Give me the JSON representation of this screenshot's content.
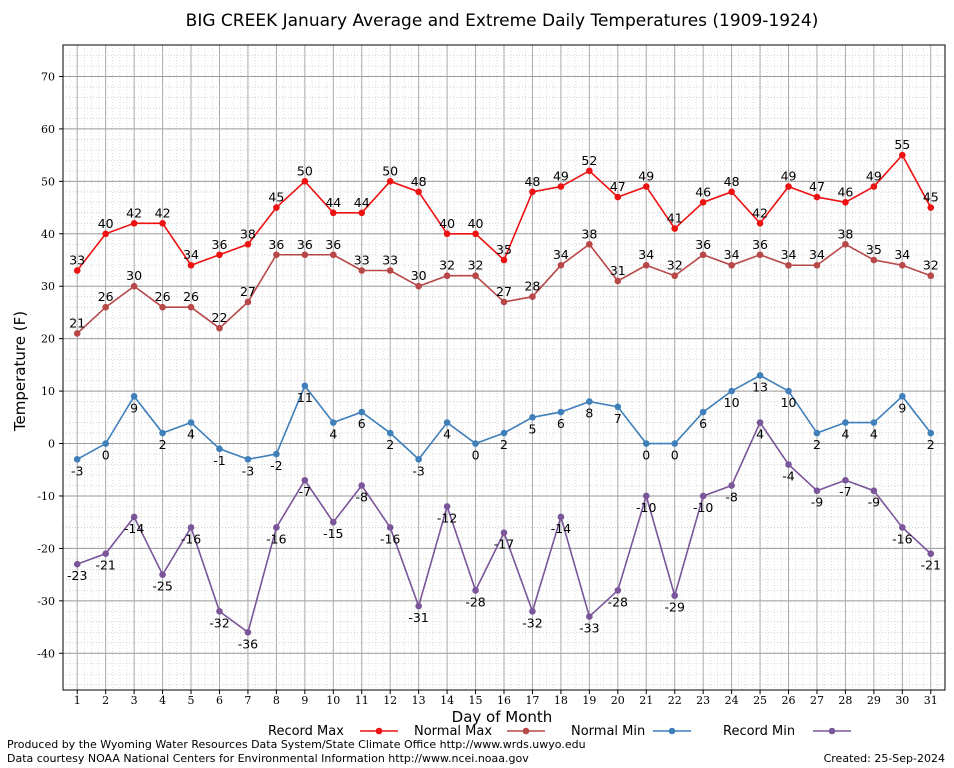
{
  "chart_data": {
    "type": "line",
    "title": "BIG CREEK January Average and Extreme Daily Temperatures (1909-1924)",
    "xlabel": "Day of Month",
    "ylabel": "Temperature (F)",
    "xlim": [
      0.5,
      31.5
    ],
    "ylim": [
      -47,
      76
    ],
    "yticks": [
      -40,
      -30,
      -20,
      -10,
      0,
      10,
      20,
      30,
      40,
      50,
      60,
      70
    ],
    "categories": [
      "1",
      "2",
      "3",
      "4",
      "5",
      "6",
      "7",
      "8",
      "9",
      "10",
      "11",
      "12",
      "13",
      "14",
      "15",
      "16",
      "17",
      "18",
      "19",
      "20",
      "21",
      "22",
      "23",
      "24",
      "25",
      "26",
      "27",
      "28",
      "29",
      "30",
      "31"
    ],
    "grid": true,
    "legend_position": "bottom",
    "series": [
      {
        "name": "Record Max",
        "color": "#ee1111",
        "values": [
          33,
          40,
          42,
          42,
          34,
          36,
          38,
          45,
          50,
          44,
          44,
          50,
          48,
          40,
          40,
          35,
          48,
          49,
          52,
          47,
          49,
          41,
          46,
          48,
          42,
          49,
          47,
          46,
          49,
          55,
          45
        ],
        "label_position": "above"
      },
      {
        "name": "Normal Max",
        "color": "#b84848",
        "values": [
          21,
          26,
          30,
          26,
          26,
          22,
          27,
          36,
          36,
          36,
          33,
          33,
          30,
          32,
          32,
          27,
          28,
          34,
          38,
          31,
          34,
          32,
          36,
          34,
          36,
          34,
          34,
          38,
          35,
          34,
          32
        ],
        "label_position": "above"
      },
      {
        "name": "Normal Min",
        "color": "#3f7fba",
        "values": [
          -3,
          0,
          9,
          2,
          4,
          -1,
          -3,
          -2,
          11,
          4,
          6,
          2,
          -3,
          4,
          0,
          2,
          5,
          6,
          8,
          7,
          0,
          0,
          6,
          10,
          13,
          10,
          2,
          4,
          4,
          9,
          2
        ],
        "label_position": "below"
      },
      {
        "name": "Record Min",
        "color": "#7a559a",
        "values": [
          -23,
          -21,
          -14,
          -25,
          -16,
          -32,
          -36,
          -16,
          -7,
          -15,
          -8,
          -16,
          -31,
          -12,
          -28,
          -17,
          -32,
          -14,
          -33,
          -28,
          -10,
          -29,
          -10,
          -8,
          4,
          -4,
          -9,
          -7,
          -9,
          -16,
          -21
        ],
        "label_position": "below"
      }
    ]
  },
  "footer": {
    "left_line1": "Produced by the Wyoming Water Resources Data System/State Climate Office http://www.wrds.uwyo.edu",
    "left_line2": "Data courtesy NOAA National Centers for Environmental Information http://www.ncei.noaa.gov",
    "created": "Created:  25-Sep-2024"
  }
}
